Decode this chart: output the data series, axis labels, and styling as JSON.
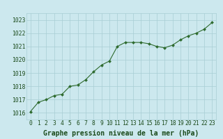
{
  "x": [
    0,
    1,
    2,
    3,
    4,
    5,
    6,
    7,
    8,
    9,
    10,
    11,
    12,
    13,
    14,
    15,
    16,
    17,
    18,
    19,
    20,
    21,
    22,
    23
  ],
  "y": [
    1016.1,
    1016.8,
    1017.0,
    1017.3,
    1017.4,
    1018.0,
    1018.1,
    1018.5,
    1019.1,
    1019.6,
    1019.9,
    1021.0,
    1021.3,
    1021.3,
    1021.3,
    1021.2,
    1021.0,
    1020.9,
    1021.1,
    1021.5,
    1021.8,
    1022.0,
    1022.3,
    1022.8
  ],
  "line_color": "#2d6a2d",
  "marker_color": "#2d6a2d",
  "bg_color": "#cce8ee",
  "grid_color": "#a8cdd4",
  "xlabel": "Graphe pression niveau de la mer (hPa)",
  "xlabel_color": "#1a4a1a",
  "tick_label_color": "#1a4a1a",
  "ylim": [
    1015.5,
    1023.5
  ],
  "yticks": [
    1016,
    1017,
    1018,
    1019,
    1020,
    1021,
    1022,
    1023
  ],
  "xticks": [
    0,
    1,
    2,
    3,
    4,
    5,
    6,
    7,
    8,
    9,
    10,
    11,
    12,
    13,
    14,
    15,
    16,
    17,
    18,
    19,
    20,
    21,
    22,
    23
  ],
  "xlabel_fontsize": 7.0,
  "tick_fontsize": 5.8
}
